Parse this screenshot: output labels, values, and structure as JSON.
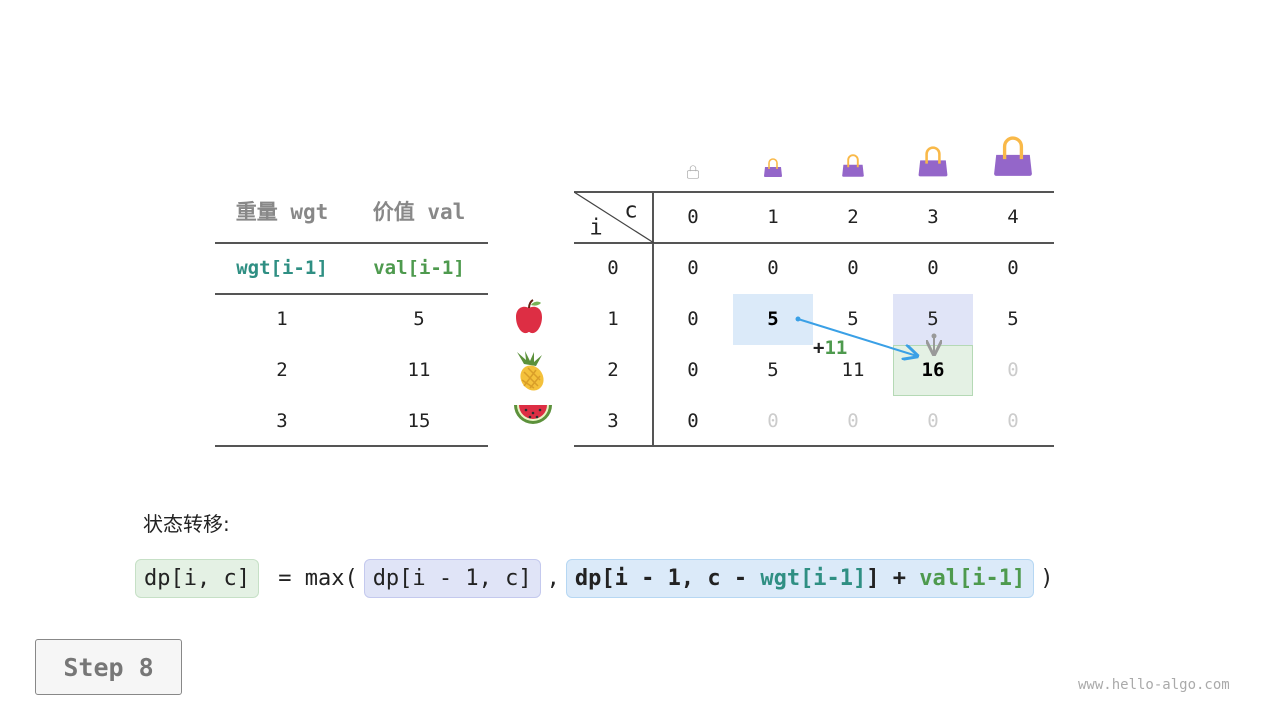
{
  "items_table": {
    "headers": [
      "重量 wgt",
      "价值 val"
    ],
    "subheaders": [
      "wgt[i-1]",
      "val[i-1]"
    ],
    "rows": [
      [
        "1",
        "5"
      ],
      [
        "2",
        "11"
      ],
      [
        "3",
        "15"
      ]
    ],
    "item_icons": [
      "apple-icon",
      "pineapple-icon",
      "watermelon-icon"
    ]
  },
  "dp_table": {
    "corner_c": "c",
    "corner_i": "i",
    "columns": [
      "0",
      "1",
      "2",
      "3",
      "4"
    ],
    "row_labels": [
      "0",
      "1",
      "2",
      "3"
    ],
    "cells": [
      [
        {
          "v": "0"
        },
        {
          "v": "0"
        },
        {
          "v": "0"
        },
        {
          "v": "0"
        },
        {
          "v": "0"
        }
      ],
      [
        {
          "v": "0"
        },
        {
          "v": "5",
          "bold": true,
          "hl": "blue"
        },
        {
          "v": "5"
        },
        {
          "v": "5",
          "hl": "purple"
        },
        {
          "v": "5"
        }
      ],
      [
        {
          "v": "0"
        },
        {
          "v": "5"
        },
        {
          "v": "11"
        },
        {
          "v": "16",
          "bold": true,
          "hl": "green"
        },
        {
          "v": "0",
          "pending": true
        }
      ],
      [
        {
          "v": "0"
        },
        {
          "v": "0",
          "pending": true
        },
        {
          "v": "0",
          "pending": true
        },
        {
          "v": "0",
          "pending": true
        },
        {
          "v": "0",
          "pending": true
        }
      ]
    ],
    "bag_icons": [
      "bag-capacity-0-icon",
      "bag-capacity-1-icon",
      "bag-capacity-2-icon",
      "bag-capacity-3-icon",
      "bag-capacity-4-icon"
    ],
    "annotation": {
      "plus": "+",
      "value": "11"
    }
  },
  "formula": {
    "label": "状态转移:",
    "lhs": "dp[i, c]",
    "eq": " = max(",
    "opt1": "dp[i - 1, c]",
    "comma": ",",
    "opt2_a": "dp[i - 1, c - ",
    "opt2_wgt": "wgt[i-1]",
    "opt2_b": "] + ",
    "opt2_val": "val[i-1]",
    "close": ")"
  },
  "step": "Step 8",
  "watermark": "www.hello-algo.com",
  "colors": {
    "blue": "#dbeaf9",
    "purple": "#e0e4f7",
    "green": "#e4f1e4",
    "teal": "#2f8f83",
    "valgreen": "#4e9a4e",
    "bag": "#9466c9",
    "arrow": "#3aa0e6"
  }
}
